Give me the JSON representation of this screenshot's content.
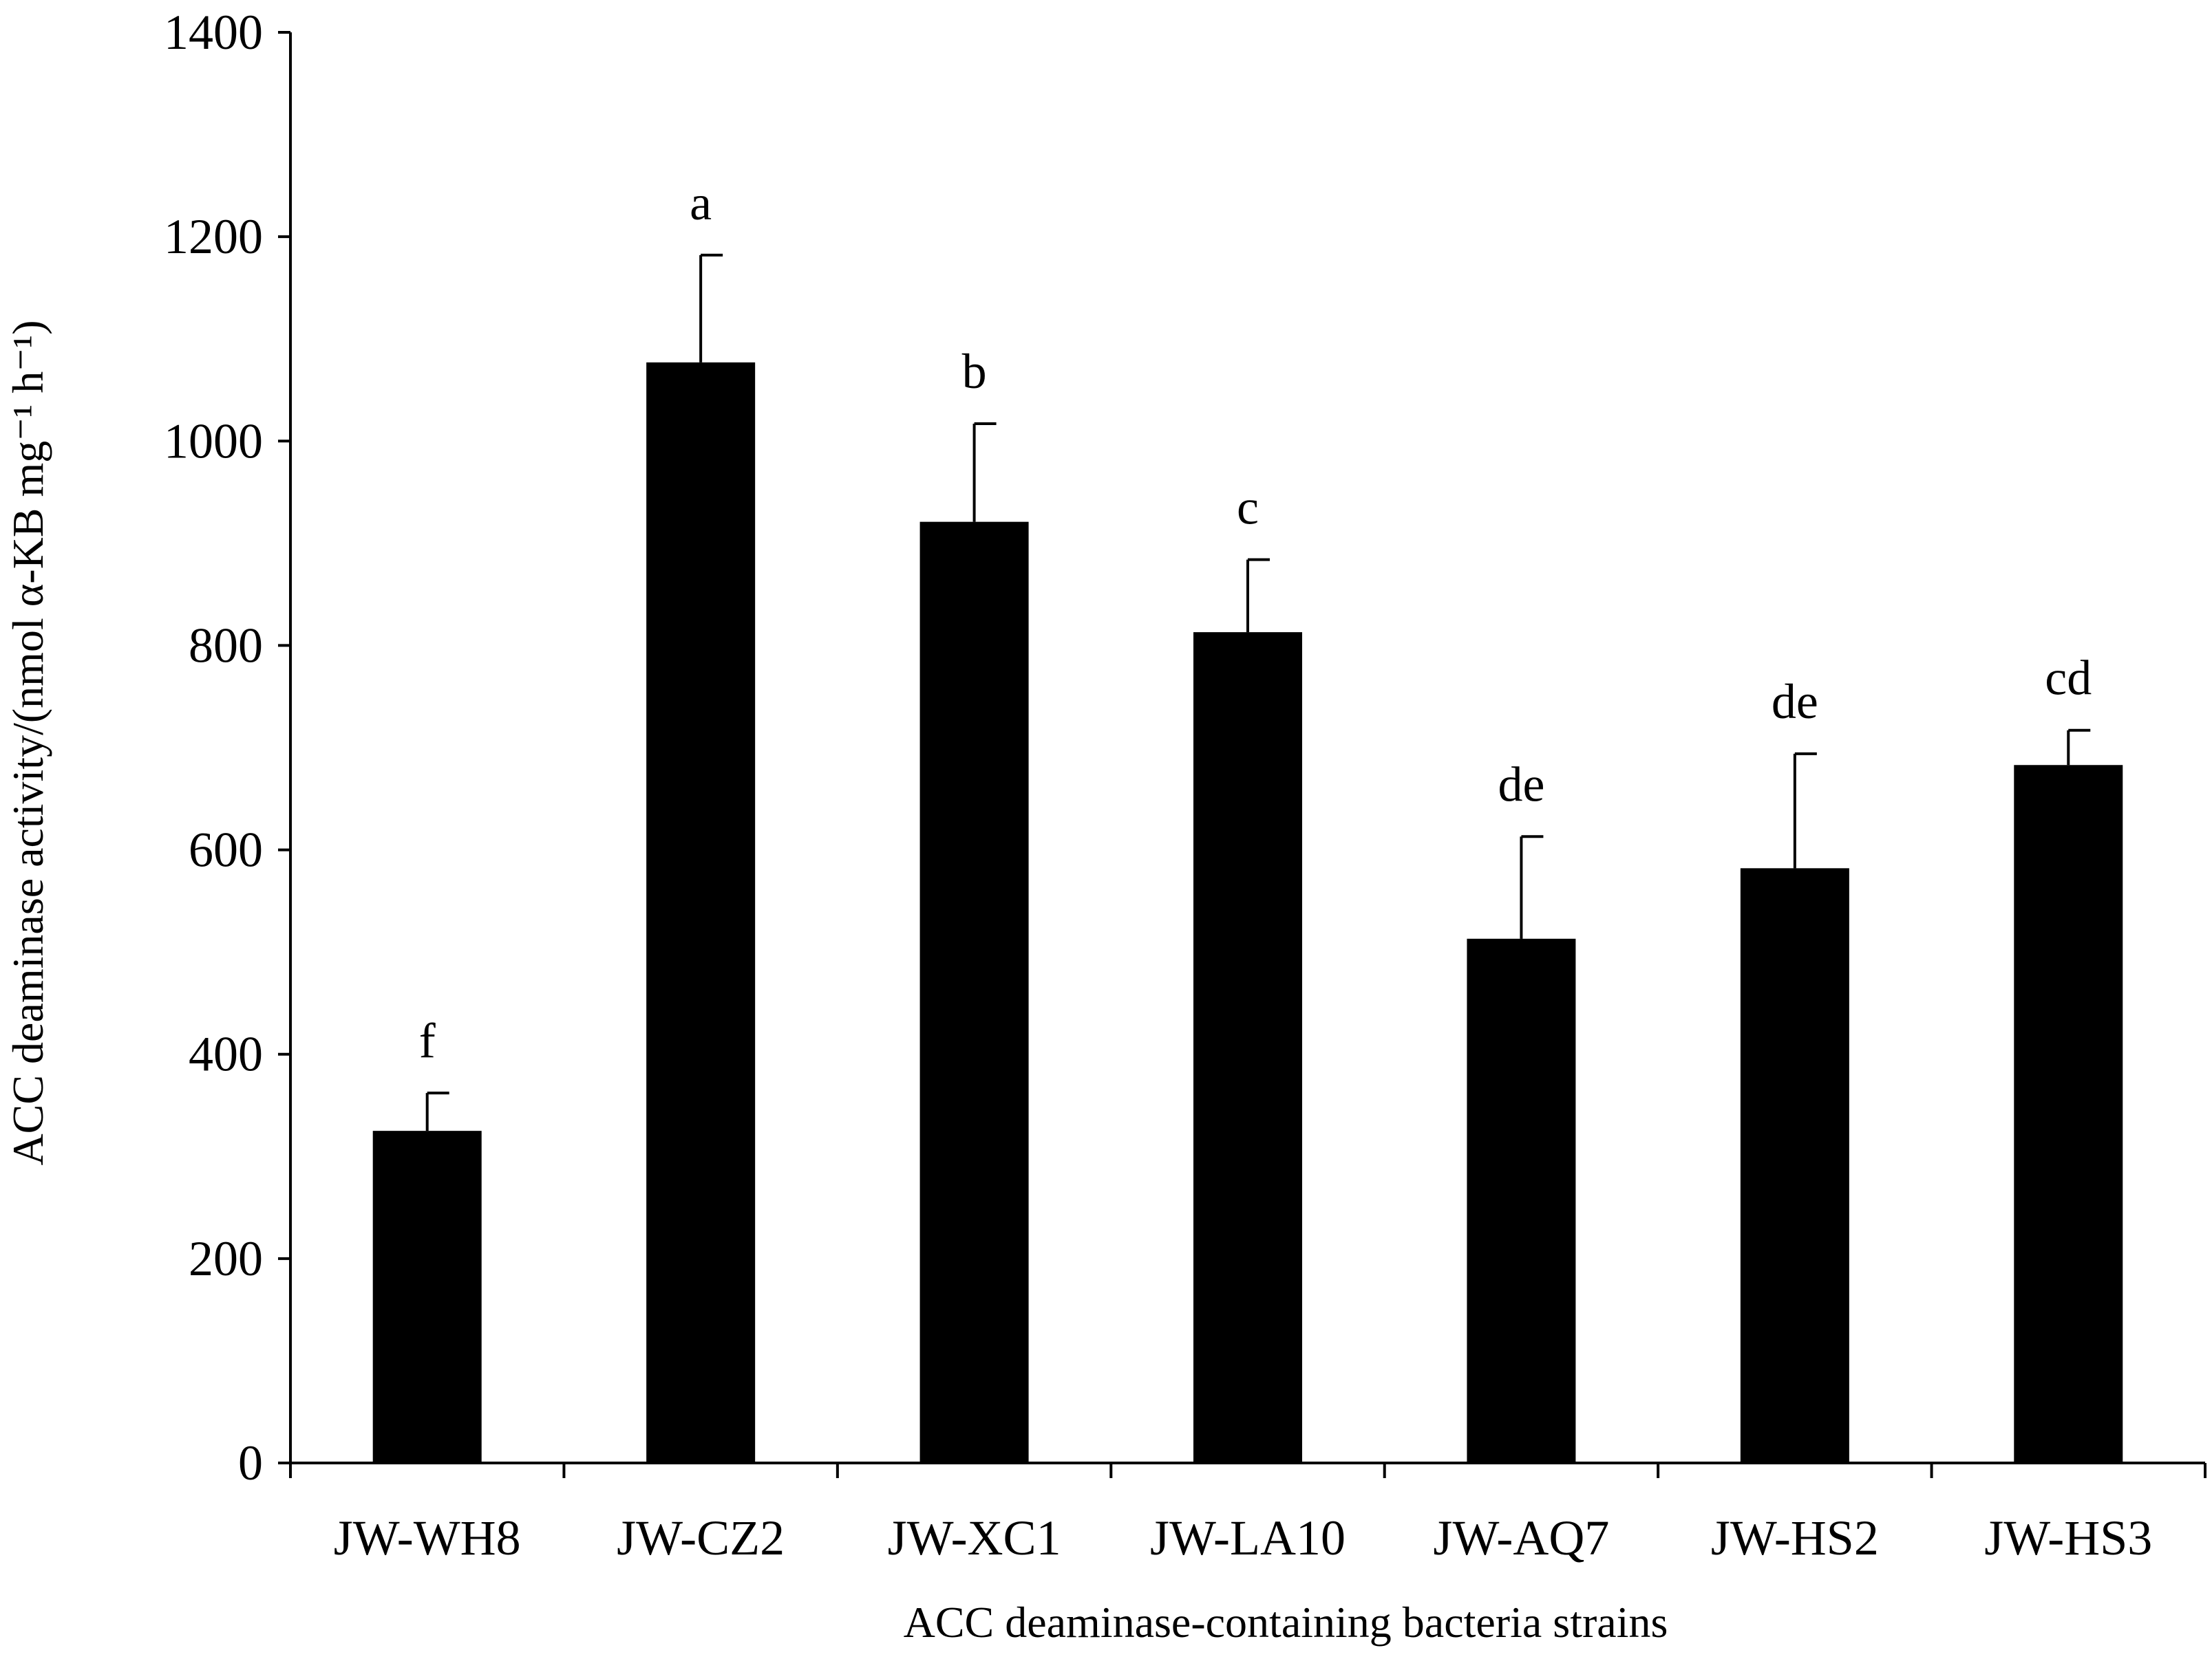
{
  "chart_data": {
    "type": "bar",
    "title": "",
    "xlabel": "ACC deaminase-containing bacteria strains",
    "ylabel": "ACC deaminase activity/(nmol α-KB mg⁻¹ h⁻¹)",
    "ylim": [
      0,
      1400
    ],
    "yticks": [
      0,
      200,
      400,
      600,
      800,
      1000,
      1200,
      1400
    ],
    "categories": [
      "JW-WH8",
      "JW-CZ2",
      "JW-XC1",
      "JW-LA10",
      "JW-AQ7",
      "JW-HS2",
      "JW-HS3"
    ],
    "values": [
      325,
      1077,
      921,
      813,
      513,
      582,
      683
    ],
    "errors": [
      37,
      105,
      96,
      71,
      100,
      112,
      34
    ],
    "significance_letters": [
      "f",
      "a",
      "b",
      "c",
      "de",
      "de",
      "cd"
    ],
    "bar_color": "#000000",
    "grid": false,
    "legend": "none"
  }
}
